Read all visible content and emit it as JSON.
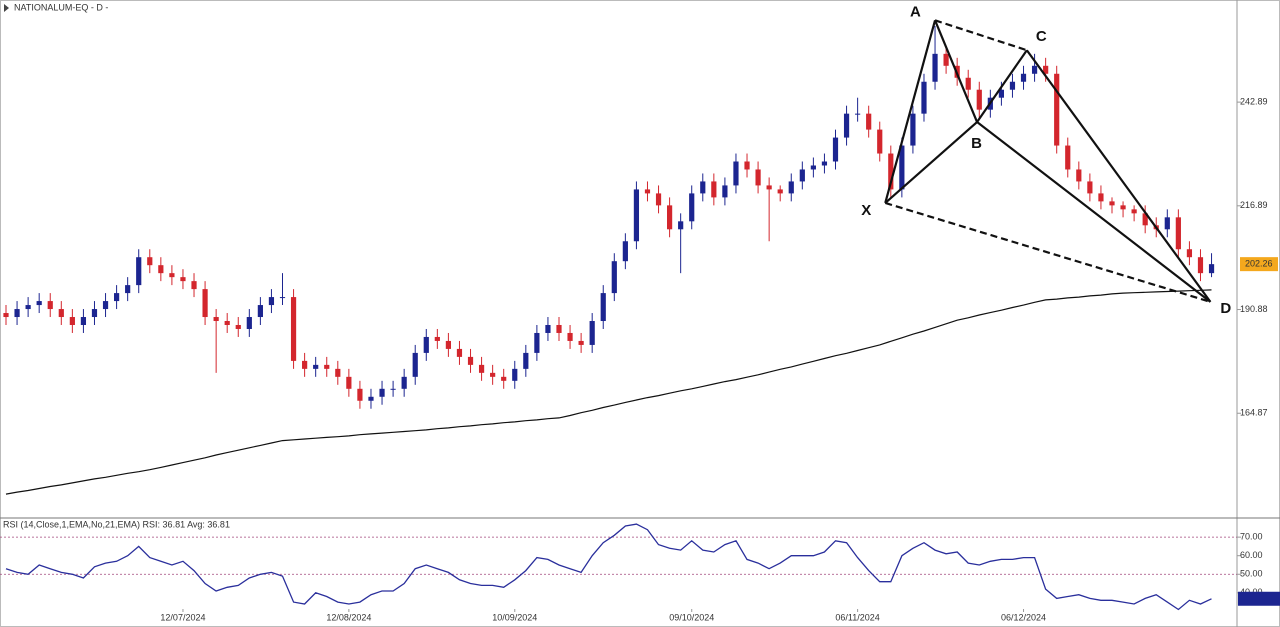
{
  "chart_data": [
    {
      "type": "candlestick",
      "title": "NATIONALUM-EQ - D -",
      "open": [
        190,
        189,
        191,
        192,
        193,
        191,
        189,
        187,
        189,
        191,
        193,
        195,
        197,
        204,
        202,
        200,
        199,
        198,
        196,
        189,
        188,
        187,
        186,
        189,
        192,
        194,
        194,
        178,
        176,
        177,
        176,
        174,
        171,
        168,
        169,
        171,
        171,
        174,
        180,
        184,
        183,
        181,
        179,
        177,
        175,
        174,
        173,
        176,
        180,
        185,
        187,
        185,
        183,
        182,
        188,
        195,
        203,
        208,
        221,
        220,
        217,
        211,
        213,
        220,
        223,
        219,
        222,
        228,
        226,
        222,
        221,
        220,
        223,
        226,
        227,
        228,
        234,
        240,
        240,
        236,
        230,
        221,
        232,
        240,
        248,
        255,
        252,
        249,
        246,
        241,
        244,
        246,
        248,
        250,
        252,
        250,
        232,
        226,
        223,
        220,
        218,
        217,
        216,
        215,
        212,
        211,
        214,
        206,
        204,
        200
      ],
      "high": [
        192,
        193,
        194,
        195,
        195,
        193,
        191,
        191,
        193,
        195,
        197,
        199,
        206,
        206,
        204,
        202,
        201,
        200,
        198,
        191,
        190,
        189,
        191,
        194,
        196,
        200,
        196,
        180,
        179,
        179,
        178,
        176,
        173,
        171,
        173,
        173,
        176,
        182,
        186,
        186,
        185,
        183,
        181,
        179,
        177,
        176,
        178,
        182,
        187,
        189,
        189,
        187,
        185,
        190,
        197,
        205,
        210,
        223,
        223,
        222,
        219,
        215,
        222,
        225,
        225,
        224,
        230,
        230,
        228,
        224,
        222,
        225,
        228,
        229,
        230,
        236,
        242,
        244,
        242,
        238,
        232,
        234,
        242,
        250,
        262,
        257,
        254,
        251,
        248,
        246,
        248,
        250,
        252,
        255,
        254,
        252,
        234,
        228,
        225,
        222,
        219,
        218,
        217,
        217,
        214,
        216,
        216,
        208,
        206,
        205
      ],
      "low": [
        187,
        187,
        189,
        190,
        189,
        187,
        185,
        185,
        187,
        189,
        191,
        193,
        195,
        200,
        198,
        197,
        196,
        194,
        187,
        175,
        185,
        184,
        184,
        187,
        190,
        192,
        176,
        174,
        174,
        174,
        172,
        169,
        166,
        166,
        167,
        169,
        169,
        172,
        178,
        181,
        179,
        177,
        175,
        173,
        172,
        171,
        171,
        174,
        178,
        183,
        183,
        181,
        180,
        180,
        186,
        193,
        201,
        206,
        218,
        215,
        209,
        200,
        211,
        218,
        217,
        217,
        220,
        224,
        220,
        208,
        218,
        218,
        221,
        224,
        225,
        226,
        232,
        238,
        234,
        228,
        219,
        219,
        230,
        238,
        246,
        250,
        247,
        244,
        239,
        239,
        242,
        244,
        246,
        248,
        248,
        230,
        224,
        221,
        218,
        216,
        215,
        214,
        213,
        210,
        209,
        209,
        204,
        202,
        198,
        199
      ],
      "close": [
        189,
        191,
        192,
        193,
        191,
        189,
        187,
        189,
        191,
        193,
        195,
        197,
        204,
        202,
        200,
        199,
        198,
        196,
        189,
        188,
        187,
        186,
        189,
        192,
        194,
        194,
        178,
        176,
        177,
        176,
        174,
        171,
        168,
        169,
        171,
        171,
        174,
        180,
        184,
        183,
        181,
        179,
        177,
        175,
        174,
        173,
        176,
        180,
        185,
        187,
        185,
        183,
        182,
        188,
        195,
        203,
        208,
        221,
        220,
        217,
        211,
        213,
        220,
        223,
        219,
        222,
        228,
        226,
        222,
        221,
        220,
        223,
        226,
        227,
        228,
        234,
        240,
        240,
        236,
        230,
        221,
        232,
        240,
        248,
        255,
        252,
        249,
        246,
        241,
        244,
        246,
        248,
        250,
        252,
        250,
        232,
        226,
        223,
        220,
        218,
        217,
        216,
        215,
        212,
        211,
        214,
        206,
        204,
        200,
        202.26
      ],
      "up_color": "#1c2590",
      "down_color": "#d3262d",
      "moving_average": {
        "color": "#111111",
        "values": [
          144.6,
          145.1,
          145.5,
          146.0,
          146.5,
          146.9,
          147.4,
          147.9,
          148.4,
          148.8,
          149.3,
          149.8,
          150.2,
          150.7,
          151.3,
          151.9,
          152.5,
          153.1,
          153.7,
          154.4,
          155.0,
          155.6,
          156.2,
          156.8,
          157.4,
          158.0,
          158.2,
          158.4,
          158.6,
          158.8,
          159.0,
          159.2,
          159.5,
          159.7,
          159.9,
          160.1,
          160.3,
          160.5,
          160.7,
          161.0,
          161.2,
          161.5,
          161.7,
          162.0,
          162.2,
          162.5,
          162.7,
          163.0,
          163.2,
          163.5,
          163.7,
          164.3,
          165.0,
          165.6,
          166.3,
          166.9,
          167.6,
          168.2,
          168.8,
          169.3,
          169.9,
          170.5,
          171.0,
          171.6,
          172.2,
          172.8,
          173.3,
          173.9,
          174.5,
          175.2,
          175.9,
          176.5,
          177.2,
          177.9,
          178.6,
          179.3,
          179.9,
          180.6,
          181.3,
          182.0,
          182.9,
          183.8,
          184.7,
          185.5,
          186.4,
          187.3,
          188.2,
          188.8,
          189.5,
          190.1,
          190.7,
          191.4,
          192.0,
          192.7,
          193.3,
          193.5,
          193.8,
          194.0,
          194.3,
          194.5,
          194.8,
          195.0,
          195.1,
          195.2,
          195.3,
          195.4,
          195.5,
          195.6,
          195.7,
          195.8
        ]
      },
      "pattern_points": [
        {
          "label": "X",
          "x": 79.5,
          "y": 217.6
        },
        {
          "label": "A",
          "x": 84,
          "y": 263.4
        },
        {
          "label": "B",
          "x": 87.8,
          "y": 237.9
        },
        {
          "label": "C",
          "x": 92.3,
          "y": 255.9
        },
        {
          "label": "D",
          "x": 108.9,
          "y": 192.8
        }
      ],
      "ylim": [
        138.6,
        268.5
      ],
      "yticks": [
        164.87,
        190.88,
        216.89,
        242.89
      ],
      "last_price_color": "#f4a81d"
    },
    {
      "type": "line",
      "title": "RSI (14,Close,1,EMA,No,21,EMA) RSI: 36.81 Avg: 36.81",
      "categories": [
        null,
        null,
        null,
        null,
        null,
        null,
        null,
        null,
        null,
        null,
        null,
        null,
        null,
        null,
        null,
        null,
        "12/07/2024",
        null,
        null,
        null,
        null,
        null,
        null,
        null,
        null,
        null,
        null,
        null,
        null,
        null,
        null,
        "12/08/2024",
        null,
        null,
        null,
        null,
        null,
        null,
        null,
        null,
        null,
        null,
        null,
        null,
        null,
        null,
        "10/09/2024",
        null,
        null,
        null,
        null,
        null,
        null,
        null,
        null,
        null,
        null,
        null,
        null,
        null,
        null,
        null,
        "09/10/2024",
        null,
        null,
        null,
        null,
        null,
        null,
        null,
        null,
        null,
        null,
        null,
        null,
        null,
        null,
        "06/11/2024",
        null,
        null,
        null,
        null,
        null,
        null,
        null,
        null,
        null,
        null,
        null,
        null,
        null,
        null,
        "06/12/2024",
        null,
        null,
        null,
        null,
        null,
        null,
        null,
        null,
        null,
        null,
        null,
        null,
        null,
        null,
        null,
        null,
        null
      ],
      "values": [
        53,
        51,
        50,
        55,
        53,
        51,
        50,
        48,
        54,
        56,
        57,
        60,
        65,
        59,
        57,
        55,
        57,
        52,
        45,
        41,
        43,
        44,
        48,
        50,
        51,
        49,
        35,
        34,
        40,
        38,
        35,
        34,
        35,
        39,
        41,
        41,
        45,
        53,
        55,
        53,
        51,
        47,
        45,
        44,
        44,
        43,
        47,
        52,
        59,
        58,
        55,
        53,
        51,
        60,
        67,
        71,
        76,
        77,
        74,
        66,
        64,
        63,
        68,
        63,
        62,
        66,
        68,
        58,
        56,
        53,
        56,
        60,
        60,
        60,
        62,
        68,
        67,
        59,
        52,
        46,
        46,
        60,
        64,
        67,
        63,
        61,
        62,
        56,
        55,
        57,
        58,
        58,
        59,
        59,
        42,
        37,
        38,
        39,
        37,
        36,
        36,
        35,
        34,
        37,
        39,
        35,
        31,
        36,
        34,
        36.81
      ],
      "color": "#2a2f9c",
      "levels": [
        70,
        50
      ],
      "level_color": "#a0457a",
      "ylim": [
        21.6,
        80.3
      ],
      "yticks": [
        {
          "value": 70,
          "label": "70.00"
        },
        {
          "value": 60,
          "label": "60.00"
        },
        {
          "value": 50,
          "label": "50.00"
        },
        {
          "value": 40,
          "label": "40.00"
        }
      ]
    }
  ]
}
